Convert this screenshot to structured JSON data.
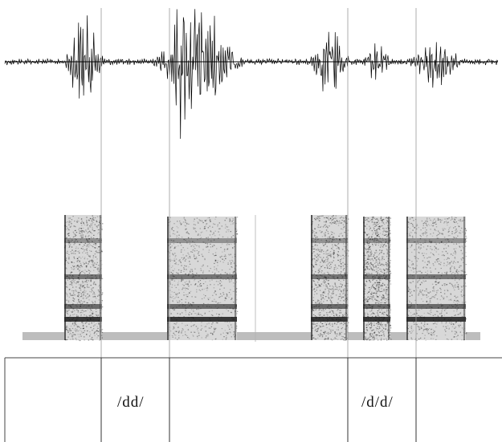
{
  "annotation": {
    "labels": [
      {
        "text": "/dd/"
      },
      {
        "text": "/d/d/"
      }
    ]
  },
  "colors": {
    "background": "#ffffff",
    "ink": "#000000",
    "boundary": "#9a9a9a"
  }
}
